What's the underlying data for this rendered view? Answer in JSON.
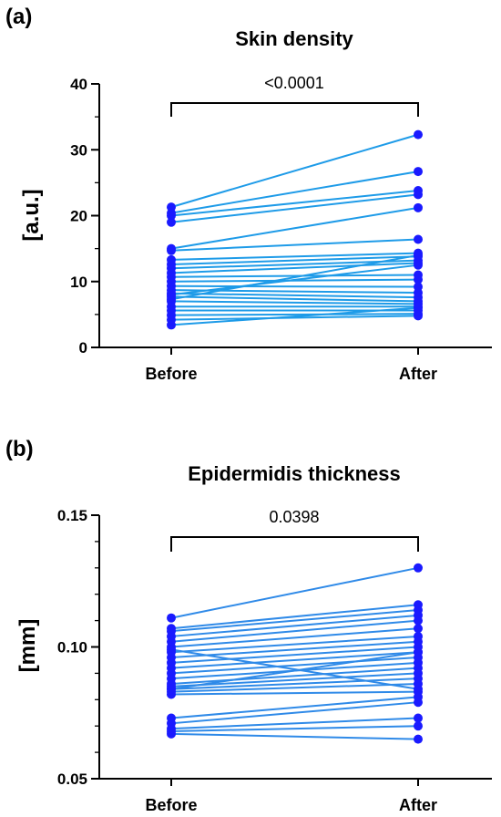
{
  "chart_data": [
    {
      "panel": "(a)",
      "type": "line",
      "title": "Skin density",
      "ylabel": "[a.u.]",
      "xlabel": "",
      "categories": [
        "Before",
        "After"
      ],
      "ylim": [
        0,
        40
      ],
      "yticks": [
        0,
        10,
        20,
        30,
        40
      ],
      "ytick_labels": [
        "0",
        "10",
        "20",
        "30",
        "40"
      ],
      "p_value": "<0.0001",
      "point_color": "#1a1aff",
      "line_color": "#1e9be8",
      "pairs": [
        [
          21.3,
          32.3
        ],
        [
          20.4,
          26.7
        ],
        [
          20.0,
          23.8
        ],
        [
          19.0,
          23.2
        ],
        [
          15.0,
          21.2
        ],
        [
          14.7,
          16.4
        ],
        [
          13.3,
          14.3
        ],
        [
          12.6,
          13.8
        ],
        [
          12.0,
          13.2
        ],
        [
          11.3,
          12.8
        ],
        [
          10.7,
          11.0
        ],
        [
          10.0,
          10.3
        ],
        [
          9.3,
          9.2
        ],
        [
          8.7,
          8.3
        ],
        [
          8.2,
          7.6
        ],
        [
          7.7,
          7.0
        ],
        [
          7.0,
          6.6
        ],
        [
          6.2,
          6.2
        ],
        [
          5.6,
          5.6
        ],
        [
          4.9,
          5.1
        ],
        [
          4.2,
          4.8
        ],
        [
          3.4,
          6.0
        ],
        [
          8.0,
          12.5
        ],
        [
          7.3,
          14.0
        ]
      ]
    },
    {
      "panel": "(b)",
      "type": "line",
      "title": "Epidermidis thickness",
      "ylabel": "[mm]",
      "xlabel": "",
      "categories": [
        "Before",
        "After"
      ],
      "ylim": [
        0.05,
        0.15
      ],
      "yticks": [
        0.05,
        0.1,
        0.15
      ],
      "ytick_labels": [
        "0.05",
        "0.10",
        "0.15"
      ],
      "p_value": "0.0398",
      "point_color": "#1a1aff",
      "line_color": "#2f8ae8",
      "pairs": [
        [
          0.111,
          0.13
        ],
        [
          0.107,
          0.116
        ],
        [
          0.106,
          0.114
        ],
        [
          0.104,
          0.112
        ],
        [
          0.102,
          0.11
        ],
        [
          0.1,
          0.107
        ],
        [
          0.098,
          0.104
        ],
        [
          0.096,
          0.102
        ],
        [
          0.094,
          0.1
        ],
        [
          0.092,
          0.098
        ],
        [
          0.09,
          0.096
        ],
        [
          0.088,
          0.094
        ],
        [
          0.086,
          0.092
        ],
        [
          0.085,
          0.09
        ],
        [
          0.084,
          0.088
        ],
        [
          0.083,
          0.086
        ],
        [
          0.082,
          0.083
        ],
        [
          0.073,
          0.081
        ],
        [
          0.071,
          0.079
        ],
        [
          0.069,
          0.073
        ],
        [
          0.068,
          0.07
        ],
        [
          0.067,
          0.065
        ],
        [
          0.084,
          0.098
        ],
        [
          0.099,
          0.084
        ]
      ]
    }
  ]
}
